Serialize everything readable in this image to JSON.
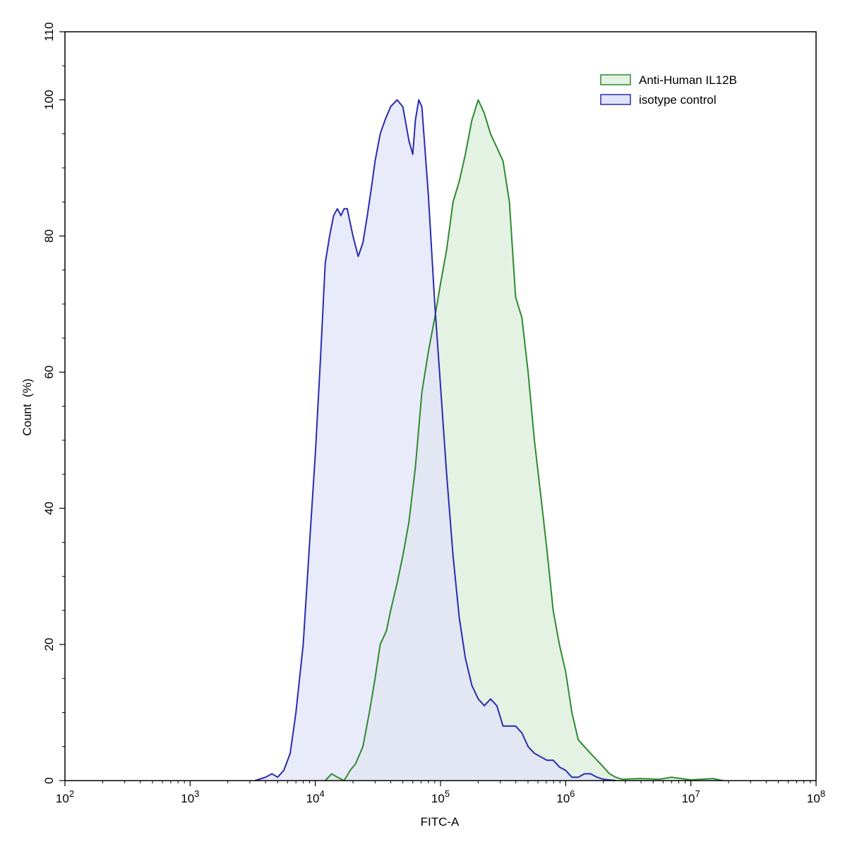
{
  "chart_data": {
    "type": "area",
    "title": "",
    "xlabel": "FITC-A",
    "ylabel": "Count  (%)",
    "xscale": "log",
    "xlim": [
      100,
      100000000
    ],
    "ylim": [
      0,
      110
    ],
    "x_ticks": [
      {
        "base": "10",
        "exp": "2",
        "value": 100
      },
      {
        "base": "10",
        "exp": "3",
        "value": 1000
      },
      {
        "base": "10",
        "exp": "4",
        "value": 10000
      },
      {
        "base": "10",
        "exp": "5",
        "value": 100000
      },
      {
        "base": "10",
        "exp": "6",
        "value": 1000000
      },
      {
        "base": "10",
        "exp": "7",
        "value": 10000000
      },
      {
        "base": "10",
        "exp": "8",
        "value": 100000000
      }
    ],
    "y_ticks": [
      "0",
      "20",
      "40",
      "60",
      "80",
      "100",
      "110"
    ],
    "grid": false,
    "legend_position": "top-right",
    "series": [
      {
        "name": "Anti-Human IL12B",
        "stroke": "#2e8b2e",
        "fill": "#e3f2e3",
        "points": [
          [
            12000,
            0
          ],
          [
            13500,
            1
          ],
          [
            15000,
            0.5
          ],
          [
            17000,
            0
          ],
          [
            19000,
            1.5
          ],
          [
            21000,
            2.5
          ],
          [
            24000,
            5
          ],
          [
            27000,
            10
          ],
          [
            30000,
            15
          ],
          [
            33000,
            20
          ],
          [
            35000,
            21
          ],
          [
            37000,
            22
          ],
          [
            40000,
            25
          ],
          [
            45000,
            29
          ],
          [
            50000,
            33
          ],
          [
            56000,
            38
          ],
          [
            63000,
            46
          ],
          [
            71000,
            57
          ],
          [
            80000,
            63
          ],
          [
            90000,
            68
          ],
          [
            100000,
            73
          ],
          [
            112000,
            78
          ],
          [
            126000,
            85
          ],
          [
            141000,
            88
          ],
          [
            158000,
            92
          ],
          [
            178000,
            97
          ],
          [
            200000,
            100
          ],
          [
            224000,
            98
          ],
          [
            251000,
            95
          ],
          [
            282000,
            93
          ],
          [
            316000,
            91
          ],
          [
            355000,
            85
          ],
          [
            398000,
            71
          ],
          [
            447000,
            68
          ],
          [
            501000,
            60
          ],
          [
            562000,
            50
          ],
          [
            631000,
            42
          ],
          [
            708000,
            34
          ],
          [
            794000,
            25
          ],
          [
            891000,
            20
          ],
          [
            1000000,
            16
          ],
          [
            1120000,
            10
          ],
          [
            1260000,
            6
          ],
          [
            1410000,
            5
          ],
          [
            1580000,
            4
          ],
          [
            1780000,
            3
          ],
          [
            2000000,
            2
          ],
          [
            2240000,
            1
          ],
          [
            2510000,
            0.5
          ],
          [
            2820000,
            0.2
          ],
          [
            4000000,
            0.3
          ],
          [
            5600000,
            0.2
          ],
          [
            7000000,
            0.5
          ],
          [
            10000000,
            0.1
          ],
          [
            15000000,
            0.3
          ],
          [
            18000000,
            0
          ]
        ]
      },
      {
        "name": "isotype control",
        "stroke": "#2b2bb0",
        "fill": "#e1e3f8",
        "points": [
          [
            3300,
            0
          ],
          [
            4000,
            0.5
          ],
          [
            4500,
            1
          ],
          [
            5000,
            0.5
          ],
          [
            5600,
            1.5
          ],
          [
            6300,
            4
          ],
          [
            7000,
            10
          ],
          [
            8000,
            20
          ],
          [
            9000,
            35
          ],
          [
            10000,
            48
          ],
          [
            11000,
            62
          ],
          [
            12000,
            76
          ],
          [
            13000,
            80
          ],
          [
            14000,
            83
          ],
          [
            15000,
            84
          ],
          [
            16000,
            83
          ],
          [
            17000,
            84
          ],
          [
            18000,
            84
          ],
          [
            20000,
            80
          ],
          [
            22000,
            77
          ],
          [
            24000,
            79
          ],
          [
            26000,
            83
          ],
          [
            28000,
            87
          ],
          [
            30000,
            91
          ],
          [
            33000,
            95
          ],
          [
            36000,
            97
          ],
          [
            40000,
            99
          ],
          [
            45000,
            100
          ],
          [
            50000,
            99
          ],
          [
            56000,
            94
          ],
          [
            60000,
            92
          ],
          [
            63000,
            97
          ],
          [
            67000,
            100
          ],
          [
            71000,
            99
          ],
          [
            80000,
            86
          ],
          [
            90000,
            70
          ],
          [
            100000,
            58
          ],
          [
            112000,
            45
          ],
          [
            126000,
            33
          ],
          [
            141000,
            24
          ],
          [
            158000,
            18
          ],
          [
            178000,
            14
          ],
          [
            200000,
            12
          ],
          [
            224000,
            11
          ],
          [
            251000,
            12
          ],
          [
            282000,
            11
          ],
          [
            316000,
            8
          ],
          [
            355000,
            8
          ],
          [
            398000,
            8
          ],
          [
            447000,
            7
          ],
          [
            501000,
            5
          ],
          [
            562000,
            4
          ],
          [
            631000,
            3.5
          ],
          [
            708000,
            3
          ],
          [
            794000,
            3
          ],
          [
            891000,
            2
          ],
          [
            1000000,
            1.5
          ],
          [
            1120000,
            0.5
          ],
          [
            1260000,
            0.5
          ],
          [
            1410000,
            1
          ],
          [
            1580000,
            1
          ],
          [
            1780000,
            0.5
          ],
          [
            2000000,
            0.2
          ],
          [
            2510000,
            0
          ]
        ]
      }
    ]
  }
}
